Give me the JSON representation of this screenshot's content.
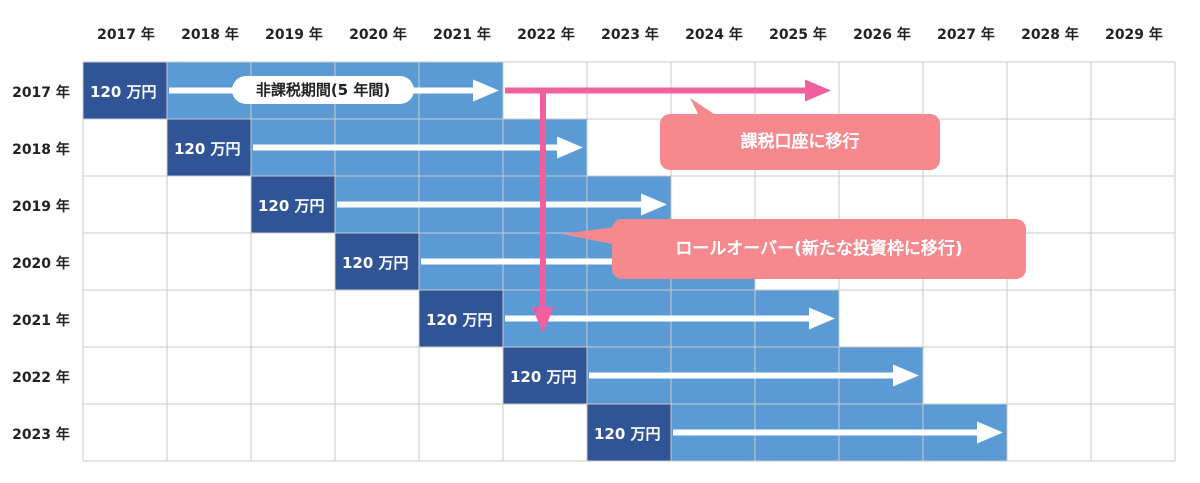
{
  "years": [
    "2017 年",
    "2018 年",
    "2019 年",
    "2020 年",
    "2021 年",
    "2022 年",
    "2023 年",
    "2024 年",
    "2025 年",
    "2026 年",
    "2027 年",
    "2028 年",
    "2029 年"
  ],
  "rows": [
    {
      "year": "2017 年",
      "amount": "120 万円"
    },
    {
      "year": "2018 年",
      "amount": "120 万円"
    },
    {
      "year": "2019 年",
      "amount": "120 万円"
    },
    {
      "year": "2020 年",
      "amount": "120 万円"
    },
    {
      "year": "2021 年",
      "amount": "120 万円"
    },
    {
      "year": "2022 年",
      "amount": "120 万円"
    },
    {
      "year": "2023 年",
      "amount": "120 万円"
    }
  ],
  "labels": {
    "tax_free_period": "非課税期間(5 年間)",
    "transfer_taxable": "課税口座に移行",
    "rollover": "ロールオーバー(新たな投資枠に移行)"
  },
  "colors": {
    "grid_line": "#c8c8c8",
    "period_fill": "#5b9bd5",
    "amount_fill": "#2f5597",
    "arrow_white": "#ffffff",
    "arrow_pink": "#f0609e",
    "callout_fill": "#f6898e"
  }
}
